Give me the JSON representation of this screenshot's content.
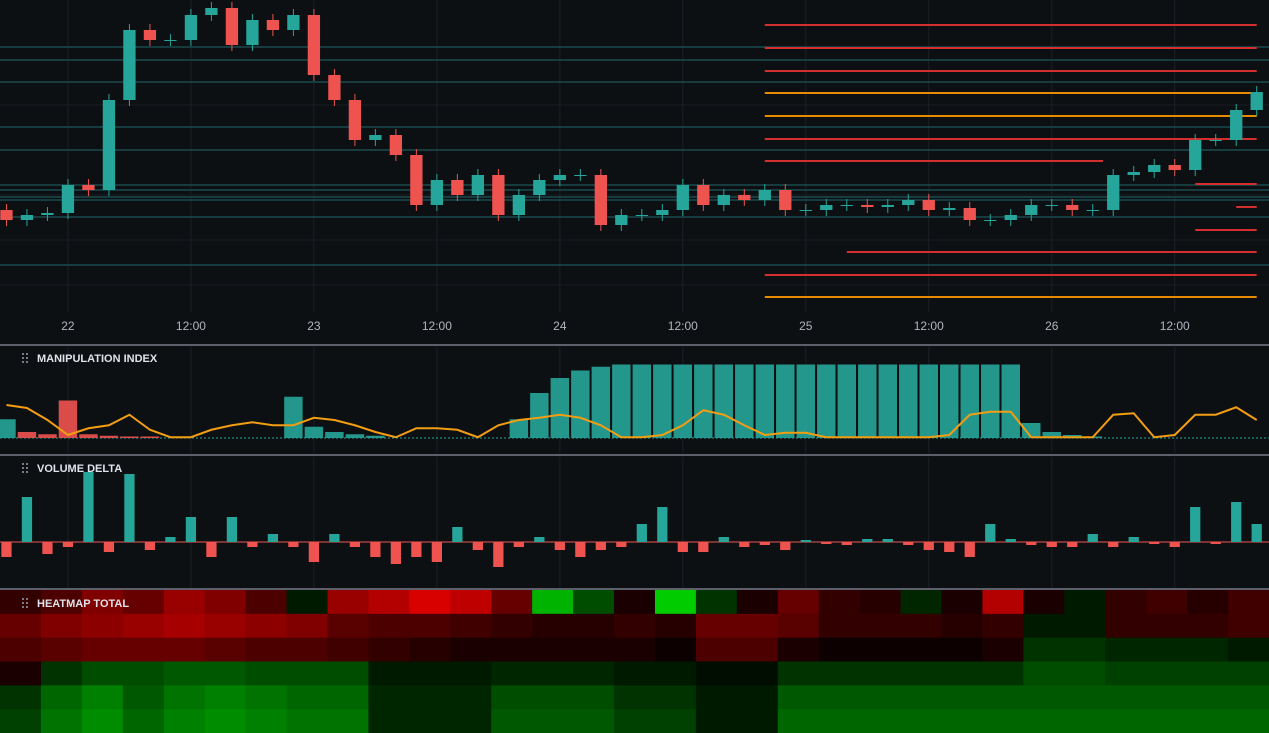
{
  "chart_data": [
    {
      "type": "candlestick",
      "up_color": "#26a69a",
      "down_color": "#ef5350",
      "x": [
        -6,
        -4,
        -2,
        0,
        2,
        4,
        6,
        8,
        10,
        12,
        14,
        16,
        18,
        20,
        22,
        24,
        26,
        28,
        30,
        32,
        34,
        36,
        38,
        40,
        42,
        44,
        46,
        48,
        50,
        52,
        54,
        56,
        58,
        60,
        62,
        64,
        66,
        68,
        70,
        72,
        74,
        76,
        78,
        80,
        82,
        84,
        86,
        88,
        90,
        92,
        94,
        96,
        98,
        100,
        102,
        104,
        106,
        108,
        110,
        112,
        114,
        116
      ],
      "open": [
        100,
        90,
        95,
        97,
        125,
        120,
        210,
        280,
        270,
        270,
        295,
        302,
        265,
        290,
        280,
        295,
        235,
        210,
        170,
        175,
        155,
        105,
        130,
        115,
        135,
        95,
        115,
        130,
        135,
        135,
        85,
        95,
        95,
        100,
        125,
        105,
        115,
        110,
        120,
        100,
        100,
        105,
        105,
        103,
        105,
        110,
        100,
        102,
        90,
        90,
        95,
        105,
        105,
        100,
        100,
        135,
        138,
        145,
        140,
        170,
        170,
        200
      ],
      "high": [
        106,
        101,
        103,
        131,
        131,
        216,
        286,
        286,
        276,
        301,
        308,
        308,
        296,
        296,
        301,
        301,
        241,
        216,
        181,
        181,
        161,
        136,
        136,
        141,
        141,
        121,
        136,
        141,
        141,
        141,
        101,
        101,
        106,
        131,
        131,
        121,
        121,
        126,
        126,
        106,
        111,
        111,
        111,
        111,
        116,
        116,
        108,
        108,
        96,
        101,
        111,
        111,
        111,
        106,
        141,
        144,
        151,
        151,
        176,
        176,
        206,
        224
      ],
      "low": [
        84,
        84,
        89,
        91,
        114,
        114,
        204,
        264,
        264,
        264,
        289,
        259,
        259,
        274,
        274,
        229,
        204,
        164,
        164,
        149,
        99,
        99,
        109,
        109,
        89,
        89,
        109,
        124,
        129,
        79,
        79,
        89,
        89,
        94,
        99,
        99,
        104,
        104,
        94,
        94,
        94,
        99,
        97,
        97,
        99,
        94,
        94,
        84,
        84,
        84,
        89,
        99,
        94,
        94,
        94,
        129,
        132,
        134,
        134,
        164,
        164,
        194
      ],
      "close": [
        90,
        95,
        97,
        125,
        120,
        210,
        280,
        270,
        270,
        295,
        302,
        265,
        290,
        280,
        295,
        235,
        210,
        170,
        175,
        155,
        105,
        130,
        115,
        135,
        95,
        115,
        130,
        135,
        135,
        85,
        95,
        95,
        100,
        125,
        105,
        115,
        110,
        120,
        100,
        100,
        105,
        105,
        103,
        105,
        110,
        100,
        102,
        90,
        90,
        95,
        105,
        105,
        100,
        100,
        135,
        138,
        145,
        140,
        170,
        170,
        200,
        218
      ],
      "xlim": [
        -6.63,
        117.2
      ],
      "ylim": [
        0,
        310
      ],
      "xticks": [
        {
          "value": 0,
          "label": "22"
        },
        {
          "value": 12,
          "label": "12:00"
        },
        {
          "value": 24,
          "label": "23"
        },
        {
          "value": 36,
          "label": "12:00"
        },
        {
          "value": 48,
          "label": "24"
        },
        {
          "value": 60,
          "label": "12:00"
        },
        {
          "value": 72,
          "label": "25"
        },
        {
          "value": 84,
          "label": "12:00"
        },
        {
          "value": 96,
          "label": "26"
        },
        {
          "value": 108,
          "label": "12:00"
        }
      ],
      "levels": [
        {
          "value": 285,
          "color": "#d32f2f",
          "from": 68,
          "to": 116
        },
        {
          "value": 262,
          "color": "#d32f2f",
          "from": 68,
          "to": 116
        },
        {
          "value": 239,
          "color": "#d32f2f",
          "from": 68,
          "to": 116
        },
        {
          "value": 217,
          "color": "#e68a00",
          "from": 68,
          "to": 116
        },
        {
          "value": 194,
          "color": "#e68a00",
          "from": 68,
          "to": 116
        },
        {
          "value": 171,
          "color": "#d32f2f",
          "from": 68,
          "to": 116
        },
        {
          "value": 149,
          "color": "#d32f2f",
          "from": 68,
          "to": 101
        },
        {
          "value": 126,
          "color": "#d32f2f",
          "from": 110,
          "to": 116
        },
        {
          "value": 103,
          "color": "#d32f2f",
          "from": 114,
          "to": 116
        },
        {
          "value": 80,
          "color": "#d32f2f",
          "from": 110,
          "to": 116
        },
        {
          "value": 58,
          "color": "#d32f2f",
          "from": 76,
          "to": 116
        },
        {
          "value": 35,
          "color": "#d32f2f",
          "from": 68,
          "to": 116
        },
        {
          "value": 13,
          "color": "#e68a00",
          "from": 68,
          "to": 116
        }
      ],
      "bands": [
        263,
        250,
        228,
        183,
        160,
        125,
        120,
        113,
        110,
        93,
        45
      ],
      "band_color": "#1b4a4e"
    },
    {
      "type": "bar_line",
      "title": "MANIPULATION INDEX",
      "ylim": [
        0,
        100
      ],
      "series": [
        {
          "name": "teal",
          "color": "#26a69a",
          "values": [
            25,
            0,
            0,
            0,
            0,
            0,
            0,
            0,
            0,
            0,
            0,
            0,
            0,
            0,
            55,
            15,
            8,
            5,
            3,
            0,
            0,
            0,
            0,
            0,
            0,
            25,
            60,
            80,
            90,
            95,
            98,
            98,
            98,
            98,
            98,
            98,
            98,
            98,
            98,
            98,
            98,
            98,
            98,
            98,
            98,
            98,
            98,
            98,
            98,
            98,
            20,
            8,
            4,
            2,
            0,
            0,
            0,
            0,
            0,
            0,
            0,
            0
          ]
        },
        {
          "name": "red",
          "color": "#ef5350",
          "values": [
            0,
            8,
            5,
            50,
            5,
            3,
            2,
            2,
            0,
            0,
            0,
            0,
            0,
            0,
            0,
            0,
            0,
            0,
            0,
            0,
            0,
            0,
            0,
            0,
            0,
            0,
            0,
            0,
            0,
            0,
            0,
            0,
            0,
            0,
            0,
            0,
            0,
            0,
            0,
            0,
            0,
            0,
            0,
            0,
            0,
            0,
            0,
            0,
            0,
            0,
            0,
            0,
            0,
            0,
            0,
            0,
            0,
            0,
            0,
            0,
            0,
            0
          ]
        },
        {
          "name": "line",
          "color": "#f29d12",
          "values": [
            44,
            40,
            24,
            4,
            13,
            17,
            31,
            11,
            1,
            1,
            11,
            17,
            21,
            17,
            17,
            27,
            24,
            17,
            8,
            1,
            13,
            13,
            11,
            1,
            17,
            24,
            27,
            31,
            27,
            17,
            1,
            1,
            4,
            17,
            37,
            31,
            17,
            4,
            7,
            7,
            1,
            1,
            1,
            1,
            1,
            1,
            4,
            31,
            35,
            35,
            1,
            1,
            1,
            1,
            31,
            33,
            1,
            4,
            31,
            31,
            41,
            24
          ]
        }
      ]
    },
    {
      "type": "signed_bar",
      "title": "VOLUME DELTA",
      "ylim": [
        -46,
        85
      ],
      "up_color": "#26a69a",
      "down_color": "#ef5350",
      "values": [
        -15,
        45,
        -12,
        -5,
        70,
        -10,
        68,
        -8,
        5,
        25,
        -15,
        25,
        -5,
        8,
        -5,
        -20,
        8,
        -5,
        -15,
        -22,
        -15,
        -20,
        15,
        -8,
        -25,
        -5,
        5,
        -8,
        -15,
        -8,
        -5,
        18,
        35,
        -10,
        -10,
        5,
        -5,
        -3,
        -8,
        2,
        -2,
        -3,
        3,
        3,
        -3,
        -8,
        -10,
        -15,
        18,
        3,
        -3,
        -5,
        -5,
        8,
        -5,
        5,
        -2,
        -5,
        35,
        -2,
        40,
        18
      ]
    },
    {
      "type": "heatmap",
      "title": "HEATMAP TOTAL",
      "zlim": [
        -100,
        100
      ],
      "rows": [
        [
          -20,
          -30,
          -50,
          -40,
          -60,
          -50,
          -30,
          10,
          -60,
          -70,
          -85,
          -75,
          -40,
          70,
          30,
          -10,
          80,
          20,
          -10,
          -40,
          -20,
          -15,
          15,
          -10,
          -70,
          -10,
          10,
          -20,
          -25,
          -15,
          -25
        ],
        [
          -40,
          -50,
          -55,
          -60,
          -65,
          -60,
          -55,
          -50,
          -35,
          -30,
          -30,
          -25,
          -20,
          -15,
          -15,
          -20,
          -15,
          -40,
          -40,
          -35,
          -20,
          -20,
          -20,
          -15,
          -20,
          10,
          10,
          -20,
          -20,
          -20,
          -25
        ],
        [
          -30,
          -35,
          -40,
          -40,
          -40,
          -35,
          -30,
          -30,
          -25,
          -20,
          -15,
          -10,
          -10,
          -10,
          -10,
          -10,
          -5,
          -30,
          -30,
          -10,
          -5,
          -5,
          -5,
          -5,
          -10,
          20,
          20,
          15,
          15,
          15,
          10
        ],
        [
          -10,
          20,
          30,
          30,
          35,
          35,
          30,
          30,
          30,
          10,
          10,
          10,
          15,
          15,
          15,
          10,
          10,
          5,
          5,
          20,
          20,
          20,
          20,
          20,
          20,
          30,
          30,
          25,
          25,
          25,
          25
        ],
        [
          20,
          40,
          50,
          35,
          45,
          50,
          45,
          40,
          40,
          15,
          15,
          15,
          30,
          30,
          30,
          20,
          20,
          10,
          10,
          35,
          35,
          35,
          35,
          35,
          35,
          35,
          35,
          35,
          35,
          35,
          35
        ],
        [
          25,
          45,
          55,
          40,
          50,
          55,
          50,
          45,
          45,
          15,
          15,
          15,
          35,
          35,
          35,
          25,
          25,
          10,
          10,
          40,
          40,
          40,
          40,
          40,
          40,
          40,
          40,
          40,
          40,
          40,
          40
        ]
      ]
    }
  ]
}
